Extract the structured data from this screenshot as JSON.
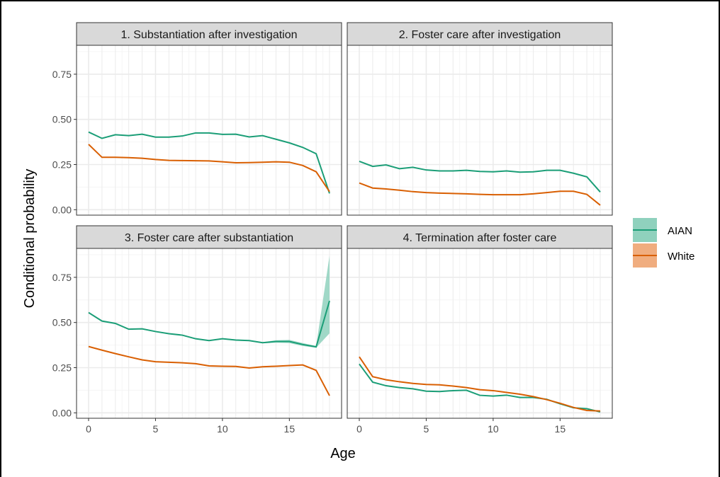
{
  "colors": {
    "AIAN": "#1b9e77",
    "White": "#d95f02",
    "AIAN_fill": "#8fd1bd",
    "White_fill": "#f0ad7f",
    "strip_bg": "#d9d9d9",
    "grid_major": "#ebebeb",
    "grid_minor": "#f5f5f5"
  },
  "chart_data": {
    "type": "line",
    "xlabel": "Age",
    "ylabel": "Conditional probability",
    "xlim": [
      -0.9,
      18.9
    ],
    "ylim": [
      -0.03,
      0.91
    ],
    "x_ticks": [
      0,
      5,
      10,
      15
    ],
    "y_ticks": [
      0.0,
      0.25,
      0.5,
      0.75
    ],
    "y_tick_labels": [
      "0.00",
      "0.25",
      "0.50",
      "0.75"
    ],
    "grid": true,
    "legend": {
      "placement": "right",
      "entries": [
        "AIAN",
        "White"
      ]
    },
    "x": [
      0,
      1,
      2,
      3,
      4,
      5,
      6,
      7,
      8,
      9,
      10,
      11,
      12,
      13,
      14,
      15,
      16,
      17,
      18
    ],
    "panels": [
      {
        "title": "1. Substantiation after investigation",
        "series": [
          {
            "name": "AIAN",
            "values": [
              0.43,
              0.395,
              0.415,
              0.41,
              0.418,
              0.402,
              0.402,
              0.408,
              0.425,
              0.425,
              0.417,
              0.418,
              0.403,
              0.41,
              0.39,
              0.37,
              0.345,
              0.31,
              0.09
            ]
          },
          {
            "name": "White",
            "values": [
              0.362,
              0.29,
              0.29,
              0.288,
              0.285,
              0.278,
              0.273,
              0.272,
              0.271,
              0.27,
              0.265,
              0.26,
              0.261,
              0.263,
              0.265,
              0.263,
              0.245,
              0.21,
              0.1
            ]
          }
        ]
      },
      {
        "title": "2. Foster care after investigation",
        "series": [
          {
            "name": "AIAN",
            "values": [
              0.268,
              0.24,
              0.248,
              0.227,
              0.235,
              0.22,
              0.215,
              0.215,
              0.218,
              0.212,
              0.21,
              0.215,
              0.208,
              0.21,
              0.218,
              0.218,
              0.202,
              0.182,
              0.098
            ]
          },
          {
            "name": "White",
            "values": [
              0.148,
              0.12,
              0.115,
              0.108,
              0.1,
              0.095,
              0.092,
              0.09,
              0.088,
              0.085,
              0.083,
              0.083,
              0.083,
              0.088,
              0.095,
              0.102,
              0.102,
              0.085,
              0.025
            ]
          }
        ]
      },
      {
        "title": "3. Foster care after substantiation",
        "series": [
          {
            "name": "AIAN",
            "values": [
              0.555,
              0.508,
              0.495,
              0.463,
              0.465,
              0.45,
              0.438,
              0.43,
              0.41,
              0.4,
              0.41,
              0.403,
              0.4,
              0.388,
              0.395,
              0.395,
              0.378,
              0.365,
              0.62
            ],
            "lower": [
              0.555,
              0.508,
              0.495,
              0.463,
              0.465,
              0.45,
              0.438,
              0.43,
              0.41,
              0.4,
              0.407,
              0.4,
              0.397,
              0.385,
              0.388,
              0.386,
              0.37,
              0.36,
              0.44
            ],
            "upper": [
              0.555,
              0.508,
              0.495,
              0.463,
              0.465,
              0.45,
              0.438,
              0.43,
              0.41,
              0.4,
              0.413,
              0.406,
              0.403,
              0.391,
              0.402,
              0.404,
              0.386,
              0.37,
              0.87
            ]
          },
          {
            "name": "White",
            "values": [
              0.367,
              0.347,
              0.328,
              0.31,
              0.293,
              0.283,
              0.28,
              0.277,
              0.272,
              0.26,
              0.258,
              0.257,
              0.248,
              0.255,
              0.258,
              0.262,
              0.265,
              0.235,
              0.095
            ]
          }
        ]
      },
      {
        "title": "4. Termination after foster care",
        "series": [
          {
            "name": "AIAN",
            "values": [
              0.27,
              0.17,
              0.15,
              0.14,
              0.133,
              0.12,
              0.118,
              0.123,
              0.125,
              0.097,
              0.093,
              0.098,
              0.085,
              0.085,
              0.075,
              0.05,
              0.028,
              0.023,
              0.005
            ]
          },
          {
            "name": "White",
            "values": [
              0.31,
              0.2,
              0.183,
              0.172,
              0.163,
              0.157,
              0.155,
              0.148,
              0.14,
              0.128,
              0.123,
              0.113,
              0.103,
              0.09,
              0.073,
              0.053,
              0.03,
              0.013,
              0.01
            ]
          }
        ]
      }
    ]
  }
}
